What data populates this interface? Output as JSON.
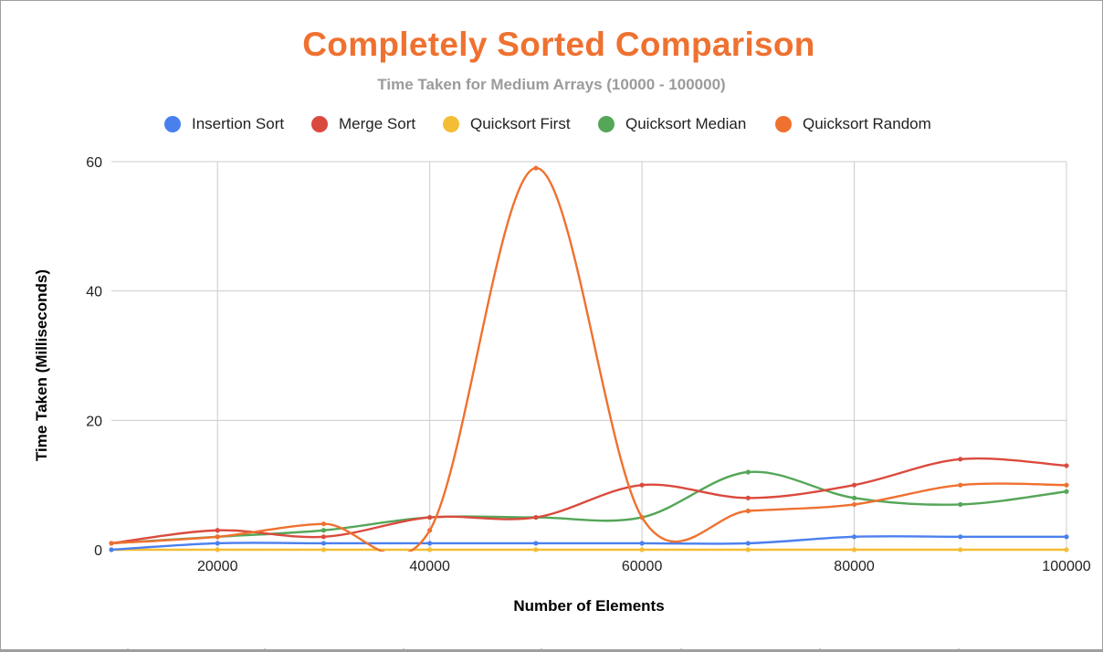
{
  "chart_data": {
    "type": "line",
    "title": "Completely Sorted Comparison",
    "subtitle": "Time Taken for Medium Arrays (10000 - 100000)",
    "xlabel": "Number of Elements",
    "ylabel": "Time Taken (Milliseconds)",
    "x": [
      10000,
      20000,
      30000,
      40000,
      50000,
      60000,
      70000,
      80000,
      90000,
      100000
    ],
    "xlim": [
      10000,
      100000
    ],
    "ylim": [
      0,
      60
    ],
    "xticks": [
      20000,
      40000,
      60000,
      80000,
      100000
    ],
    "yticks": [
      0,
      20,
      40,
      60
    ],
    "grid": true,
    "smooth": true,
    "legend_position": "top",
    "series": [
      {
        "name": "Insertion Sort",
        "color": "#4a80ee",
        "values": [
          0,
          1,
          1,
          1,
          1,
          1,
          1,
          2,
          2,
          2
        ]
      },
      {
        "name": "Merge Sort",
        "color": "#db4a3e",
        "values": [
          1,
          3,
          2,
          5,
          5,
          10,
          8,
          10,
          14,
          13
        ]
      },
      {
        "name": "Quicksort First",
        "color": "#f4bd35",
        "values": [
          0,
          0,
          0,
          0,
          0,
          0,
          0,
          0,
          0,
          0
        ]
      },
      {
        "name": "Quicksort Median",
        "color": "#55a658",
        "values": [
          1,
          2,
          3,
          5,
          5,
          5,
          12,
          8,
          7,
          9
        ]
      },
      {
        "name": "Quicksort Random",
        "color": "#ef7130",
        "values": [
          1,
          2,
          4,
          3,
          59,
          5,
          6,
          7,
          10,
          10
        ]
      }
    ]
  }
}
